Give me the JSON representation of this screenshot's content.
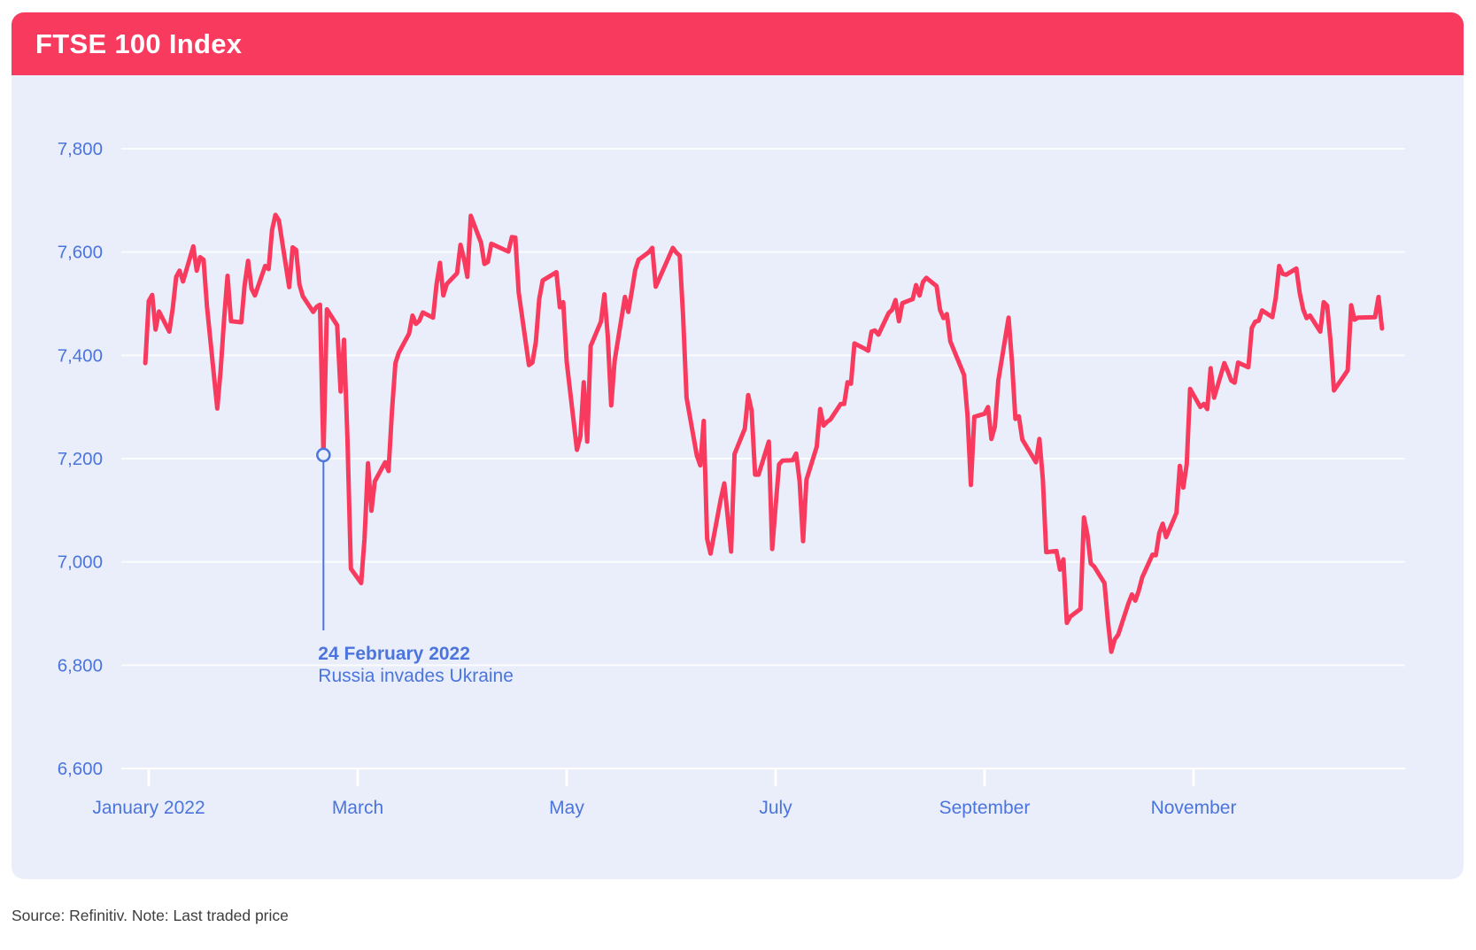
{
  "card": {
    "title": "FTSE 100 Index",
    "header_color": "#f93a5f",
    "body_color": "#e9eefa"
  },
  "source_note": "Source: Refinitiv. Note: Last traded price",
  "chart_data": {
    "type": "line",
    "title": "FTSE 100 Index",
    "grid": "horizontal",
    "line_color": "#f93a5f",
    "label_color": "#4b74dd",
    "gridline_color": "#ffffff",
    "y_axis": {
      "min": 6600,
      "max": 7800,
      "step": 200,
      "tick_labels": [
        "7,800",
        "7,600",
        "7,400",
        "7,200",
        "7,000",
        "6,800",
        "6,600"
      ]
    },
    "x_axis": {
      "tick_labels": [
        "January 2022",
        "March",
        "May",
        "July",
        "September",
        "November"
      ],
      "range": "2022-01-03 to 2022-12-30"
    },
    "annotation": {
      "date": "02-24",
      "value": 7207,
      "label_line1": "24 February 2022",
      "label_line2": "Russia invades Ukraine"
    },
    "series": [
      {
        "name": "FTSE 100 Index",
        "points": [
          [
            "01-03",
            7385
          ],
          [
            "01-04",
            7505
          ],
          [
            "01-05",
            7517
          ],
          [
            "01-06",
            7450
          ],
          [
            "01-07",
            7485
          ],
          [
            "01-10",
            7446
          ],
          [
            "01-11",
            7491
          ],
          [
            "01-12",
            7552
          ],
          [
            "01-13",
            7564
          ],
          [
            "01-14",
            7543
          ],
          [
            "01-17",
            7611
          ],
          [
            "01-18",
            7564
          ],
          [
            "01-19",
            7590
          ],
          [
            "01-20",
            7585
          ],
          [
            "01-21",
            7494
          ],
          [
            "01-24",
            7297
          ],
          [
            "01-25",
            7371
          ],
          [
            "01-26",
            7470
          ],
          [
            "01-27",
            7554
          ],
          [
            "01-28",
            7466
          ],
          [
            "01-31",
            7464
          ],
          [
            "02-01",
            7536
          ],
          [
            "02-02",
            7583
          ],
          [
            "02-03",
            7529
          ],
          [
            "02-04",
            7516
          ],
          [
            "02-07",
            7573
          ],
          [
            "02-08",
            7567
          ],
          [
            "02-09",
            7643
          ],
          [
            "02-10",
            7672
          ],
          [
            "02-11",
            7661
          ],
          [
            "02-14",
            7532
          ],
          [
            "02-15",
            7609
          ],
          [
            "02-16",
            7604
          ],
          [
            "02-17",
            7537
          ],
          [
            "02-18",
            7514
          ],
          [
            "02-21",
            7484
          ],
          [
            "02-22",
            7494
          ],
          [
            "02-23",
            7498
          ],
          [
            "02-24",
            7207
          ],
          [
            "02-25",
            7489
          ],
          [
            "02-28",
            7458
          ],
          [
            "03-01",
            7330
          ],
          [
            "03-02",
            7430
          ],
          [
            "03-03",
            7239
          ],
          [
            "03-04",
            6987
          ],
          [
            "03-07",
            6959
          ],
          [
            "03-08",
            7045
          ],
          [
            "03-09",
            7191
          ],
          [
            "03-10",
            7099
          ],
          [
            "03-11",
            7156
          ],
          [
            "03-14",
            7193
          ],
          [
            "03-15",
            7176
          ],
          [
            "03-16",
            7292
          ],
          [
            "03-17",
            7385
          ],
          [
            "03-18",
            7405
          ],
          [
            "03-21",
            7442
          ],
          [
            "03-22",
            7477
          ],
          [
            "03-23",
            7461
          ],
          [
            "03-24",
            7467
          ],
          [
            "03-25",
            7483
          ],
          [
            "03-28",
            7473
          ],
          [
            "03-29",
            7537
          ],
          [
            "03-30",
            7579
          ],
          [
            "03-31",
            7516
          ],
          [
            "04-01",
            7538
          ],
          [
            "04-04",
            7559
          ],
          [
            "04-05",
            7614
          ],
          [
            "04-06",
            7588
          ],
          [
            "04-07",
            7552
          ],
          [
            "04-08",
            7670
          ],
          [
            "04-11",
            7618
          ],
          [
            "04-12",
            7577
          ],
          [
            "04-13",
            7581
          ],
          [
            "04-14",
            7616
          ],
          [
            "04-19",
            7601
          ],
          [
            "04-20",
            7629
          ],
          [
            "04-21",
            7628
          ],
          [
            "04-22",
            7522
          ],
          [
            "04-25",
            7381
          ],
          [
            "04-26",
            7386
          ],
          [
            "04-27",
            7426
          ],
          [
            "04-28",
            7509
          ],
          [
            "04-29",
            7545
          ],
          [
            "05-03",
            7561
          ],
          [
            "05-04",
            7493
          ],
          [
            "05-05",
            7503
          ],
          [
            "05-06",
            7388
          ],
          [
            "05-09",
            7217
          ],
          [
            "05-10",
            7243
          ],
          [
            "05-11",
            7348
          ],
          [
            "05-12",
            7233
          ],
          [
            "05-13",
            7418
          ],
          [
            "05-16",
            7465
          ],
          [
            "05-17",
            7518
          ],
          [
            "05-18",
            7438
          ],
          [
            "05-19",
            7303
          ],
          [
            "05-20",
            7390
          ],
          [
            "05-23",
            7513
          ],
          [
            "05-24",
            7484
          ],
          [
            "05-25",
            7523
          ],
          [
            "05-26",
            7565
          ],
          [
            "05-27",
            7585
          ],
          [
            "05-30",
            7600
          ],
          [
            "05-31",
            7608
          ],
          [
            "06-01",
            7533
          ],
          [
            "06-06",
            7608
          ],
          [
            "06-07",
            7599
          ],
          [
            "06-08",
            7593
          ],
          [
            "06-09",
            7476
          ],
          [
            "06-10",
            7318
          ],
          [
            "06-13",
            7206
          ],
          [
            "06-14",
            7187
          ],
          [
            "06-15",
            7273
          ],
          [
            "06-16",
            7045
          ],
          [
            "06-17",
            7016
          ],
          [
            "06-20",
            7122
          ],
          [
            "06-21",
            7152
          ],
          [
            "06-22",
            7089
          ],
          [
            "06-23",
            7020
          ],
          [
            "06-24",
            7209
          ],
          [
            "06-27",
            7258
          ],
          [
            "06-28",
            7323
          ],
          [
            "06-29",
            7293
          ],
          [
            "06-30",
            7169
          ],
          [
            "07-01",
            7169
          ],
          [
            "07-04",
            7233
          ],
          [
            "07-05",
            7025
          ],
          [
            "07-06",
            7108
          ],
          [
            "07-07",
            7189
          ],
          [
            "07-08",
            7196
          ],
          [
            "07-11",
            7197
          ],
          [
            "07-12",
            7210
          ],
          [
            "07-13",
            7156
          ],
          [
            "07-14",
            7040
          ],
          [
            "07-15",
            7159
          ],
          [
            "07-18",
            7223
          ],
          [
            "07-19",
            7296
          ],
          [
            "07-20",
            7264
          ],
          [
            "07-21",
            7271
          ],
          [
            "07-22",
            7276
          ],
          [
            "07-25",
            7306
          ],
          [
            "07-26",
            7306
          ],
          [
            "07-27",
            7348
          ],
          [
            "07-28",
            7345
          ],
          [
            "07-29",
            7423
          ],
          [
            "08-01",
            7413
          ],
          [
            "08-02",
            7409
          ],
          [
            "08-03",
            7446
          ],
          [
            "08-04",
            7448
          ],
          [
            "08-05",
            7440
          ],
          [
            "08-08",
            7482
          ],
          [
            "08-09",
            7488
          ],
          [
            "08-10",
            7507
          ],
          [
            "08-11",
            7466
          ],
          [
            "08-12",
            7501
          ],
          [
            "08-15",
            7509
          ],
          [
            "08-16",
            7536
          ],
          [
            "08-17",
            7516
          ],
          [
            "08-18",
            7542
          ],
          [
            "08-19",
            7550
          ],
          [
            "08-22",
            7534
          ],
          [
            "08-23",
            7488
          ],
          [
            "08-24",
            7472
          ],
          [
            "08-25",
            7480
          ],
          [
            "08-26",
            7427
          ],
          [
            "08-30",
            7362
          ],
          [
            "08-31",
            7284
          ],
          [
            "09-01",
            7149
          ],
          [
            "09-02",
            7281
          ],
          [
            "09-05",
            7287
          ],
          [
            "09-06",
            7300
          ],
          [
            "09-07",
            7238
          ],
          [
            "09-08",
            7262
          ],
          [
            "09-09",
            7351
          ],
          [
            "09-12",
            7473
          ],
          [
            "09-13",
            7386
          ],
          [
            "09-14",
            7277
          ],
          [
            "09-15",
            7282
          ],
          [
            "09-16",
            7237
          ],
          [
            "09-20",
            7193
          ],
          [
            "09-21",
            7238
          ],
          [
            "09-22",
            7160
          ],
          [
            "09-23",
            7019
          ],
          [
            "09-26",
            7021
          ],
          [
            "09-27",
            6985
          ],
          [
            "09-28",
            7005
          ],
          [
            "09-29",
            6882
          ],
          [
            "09-30",
            6894
          ],
          [
            "10-03",
            6909
          ],
          [
            "10-04",
            7086
          ],
          [
            "10-05",
            7053
          ],
          [
            "10-06",
            6997
          ],
          [
            "10-07",
            6991
          ],
          [
            "10-10",
            6959
          ],
          [
            "10-11",
            6885
          ],
          [
            "10-12",
            6826
          ],
          [
            "10-13",
            6850
          ],
          [
            "10-14",
            6859
          ],
          [
            "10-17",
            6920
          ],
          [
            "10-18",
            6937
          ],
          [
            "10-19",
            6925
          ],
          [
            "10-20",
            6944
          ],
          [
            "10-21",
            6970
          ],
          [
            "10-24",
            7014
          ],
          [
            "10-25",
            7013
          ],
          [
            "10-26",
            7056
          ],
          [
            "10-27",
            7074
          ],
          [
            "10-28",
            7048
          ],
          [
            "10-31",
            7095
          ],
          [
            "11-01",
            7186
          ],
          [
            "11-02",
            7144
          ],
          [
            "11-03",
            7189
          ],
          [
            "11-04",
            7335
          ],
          [
            "11-07",
            7300
          ],
          [
            "11-08",
            7306
          ],
          [
            "11-09",
            7296
          ],
          [
            "11-10",
            7375
          ],
          [
            "11-11",
            7318
          ],
          [
            "11-14",
            7385
          ],
          [
            "11-15",
            7369
          ],
          [
            "11-16",
            7351
          ],
          [
            "11-17",
            7347
          ],
          [
            "11-18",
            7386
          ],
          [
            "11-21",
            7377
          ],
          [
            "11-22",
            7453
          ],
          [
            "11-23",
            7465
          ],
          [
            "11-24",
            7467
          ],
          [
            "11-25",
            7487
          ],
          [
            "11-28",
            7474
          ],
          [
            "11-29",
            7512
          ],
          [
            "11-30",
            7573
          ],
          [
            "12-01",
            7558
          ],
          [
            "12-02",
            7556
          ],
          [
            "12-05",
            7568
          ],
          [
            "12-06",
            7521
          ],
          [
            "12-07",
            7489
          ],
          [
            "12-08",
            7472
          ],
          [
            "12-09",
            7477
          ],
          [
            "12-12",
            7446
          ],
          [
            "12-13",
            7503
          ],
          [
            "12-14",
            7496
          ],
          [
            "12-15",
            7426
          ],
          [
            "12-16",
            7332
          ],
          [
            "12-19",
            7361
          ],
          [
            "12-20",
            7371
          ],
          [
            "12-21",
            7497
          ],
          [
            "12-22",
            7469
          ],
          [
            "12-23",
            7473
          ],
          [
            "12-28",
            7474
          ],
          [
            "12-29",
            7513
          ],
          [
            "12-30",
            7452
          ]
        ]
      }
    ]
  }
}
